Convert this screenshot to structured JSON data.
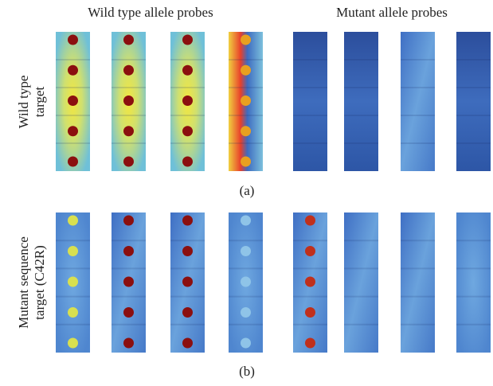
{
  "column_headers": [
    "Wild type allele probes",
    "Mutant allele probes"
  ],
  "rows": [
    {
      "label_lines": [
        "Wild type",
        "target"
      ],
      "panel_label": "(a)"
    },
    {
      "label_lines": [
        "Mutant sequence",
        "target (C42R)"
      ],
      "panel_label": "(b)"
    }
  ]
}
